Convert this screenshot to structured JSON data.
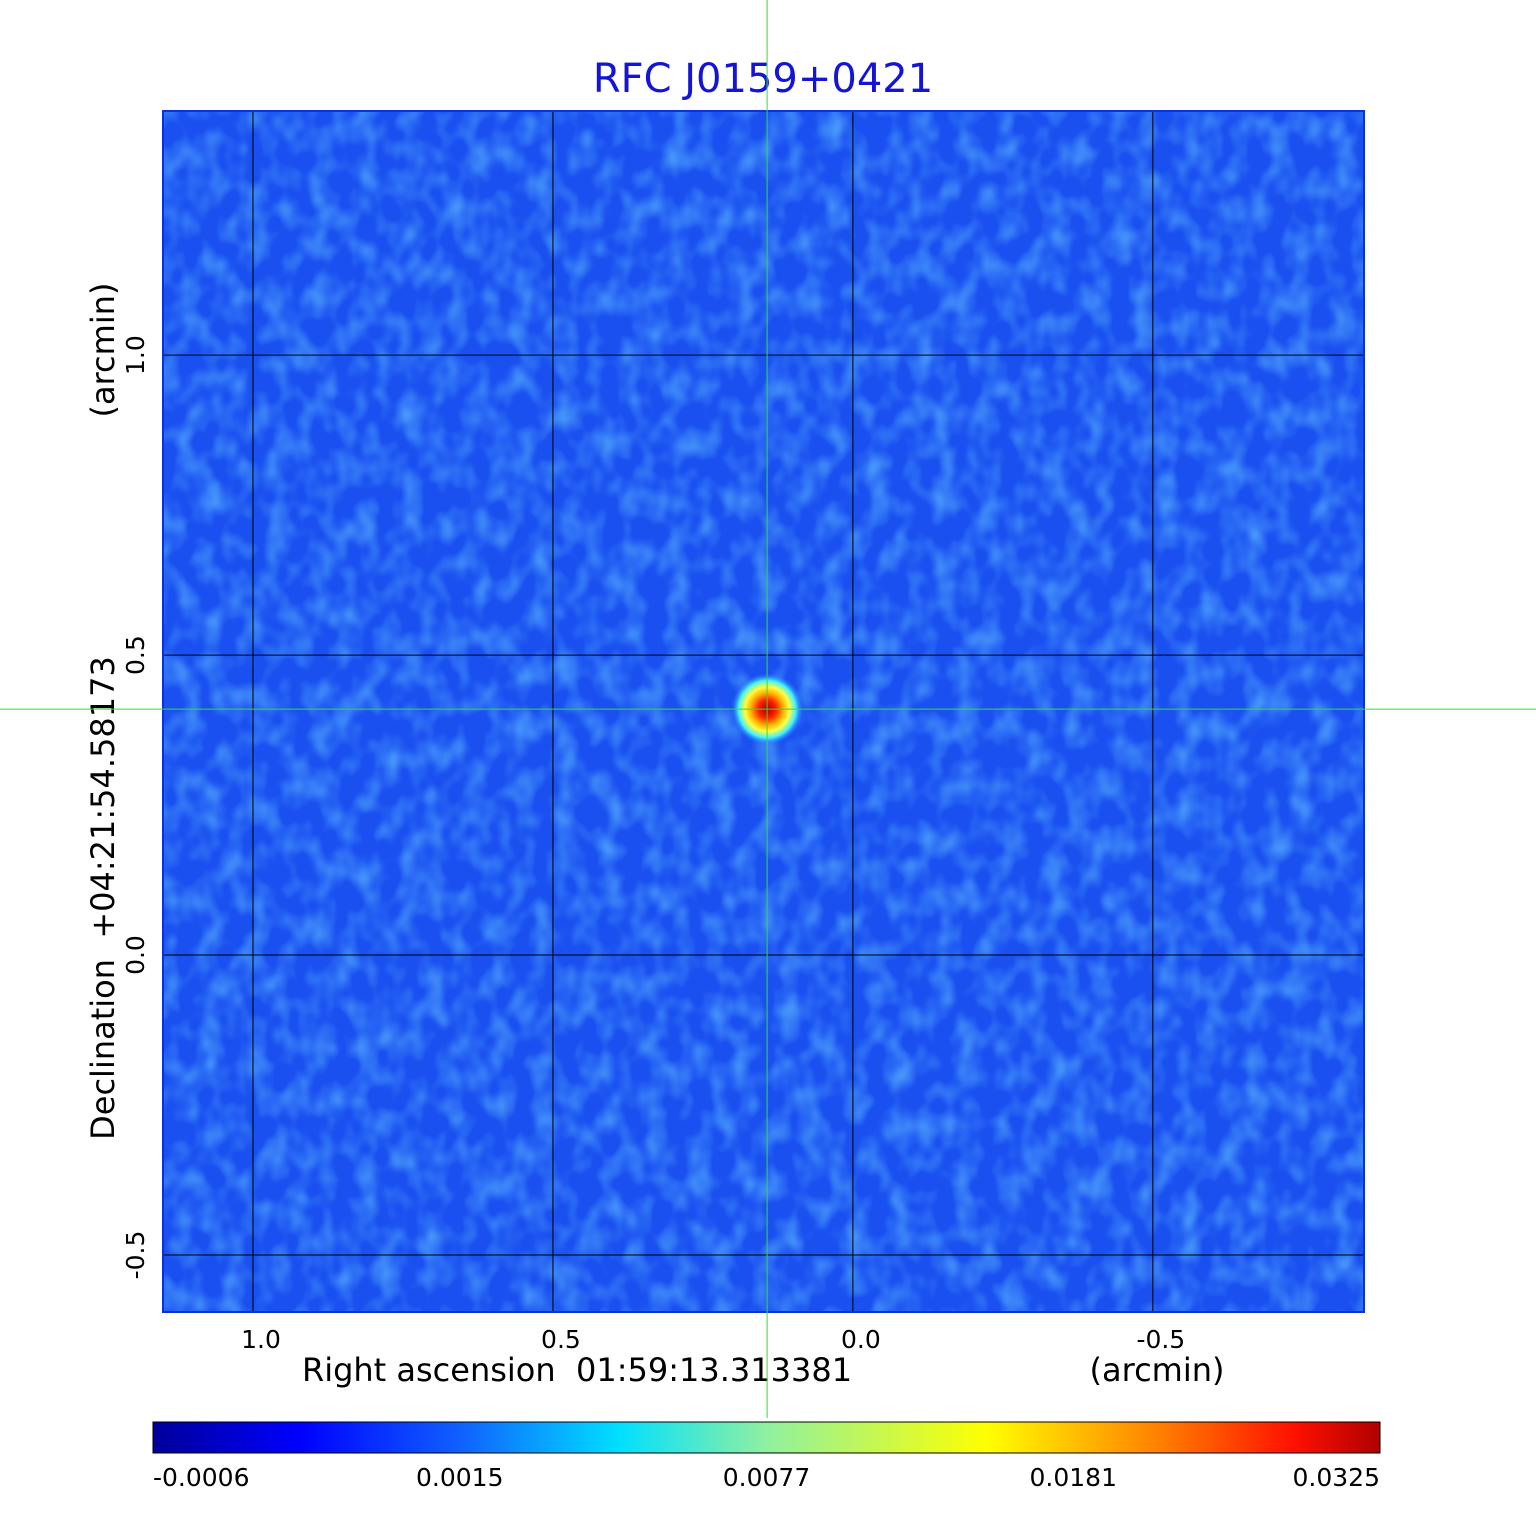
{
  "chart_data": {
    "type": "image",
    "title": "RFC J0159+0421",
    "xlabel": "Right ascension  01:59:13.313381",
    "xunit": "(arcmin)",
    "ylabel": "Declination  +04:21:54.58173",
    "yunit": "(arcmin)",
    "xlim": [
      1.15,
      -0.852
    ],
    "ylim": [
      -0.595,
      1.407
    ],
    "xticks": [
      {
        "value": 1,
        "label": "1.0"
      },
      0.5,
      {
        "value": 0,
        "label": "0.0"
      },
      -0.5
    ],
    "yticks": [
      -0.5,
      {
        "value": 0,
        "label": "0.0"
      },
      0.5,
      {
        "value": 1,
        "label": "1.0"
      }
    ],
    "grid": true,
    "source": {
      "x": 0.143,
      "y": 0.41
    },
    "colorbar": {
      "ticks": [
        -0.0006,
        0.0015,
        0.0077,
        0.0181,
        0.0325
      ]
    }
  }
}
